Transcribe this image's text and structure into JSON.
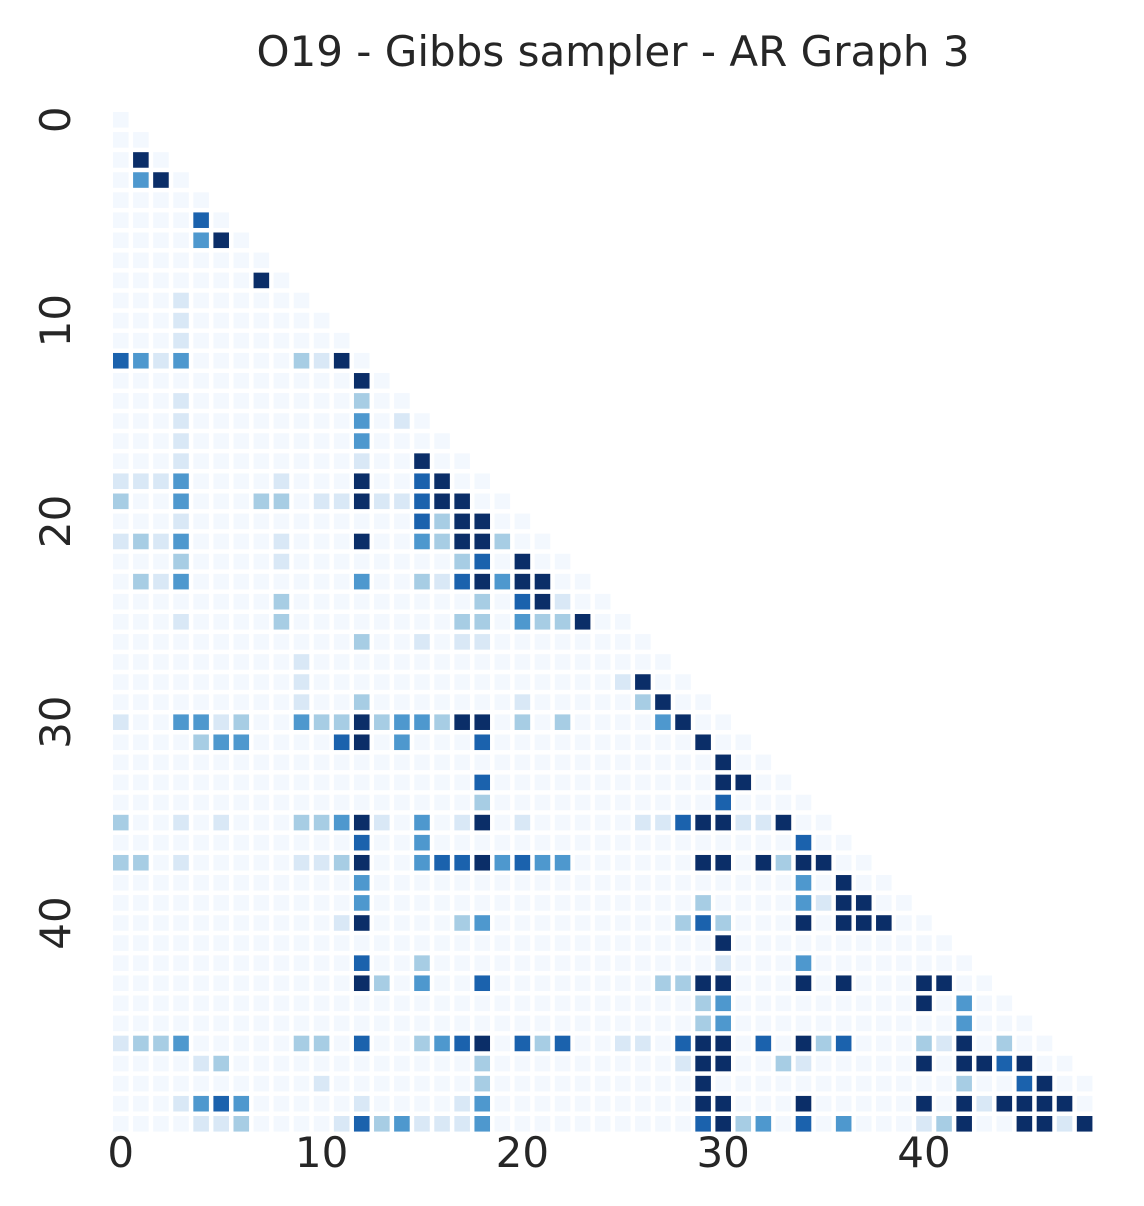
{
  "chart_data": {
    "type": "heatmap",
    "title": "O19 - Gibbs sampler - AR Graph 3",
    "xlabel": "",
    "ylabel": "",
    "n": 49,
    "mask": "lower-triangular (upper triangle blank)",
    "colormap": "Blues",
    "grid": false,
    "colorbar": false,
    "x_ticks": [
      "0",
      "10",
      "20",
      "30",
      "40"
    ],
    "y_ticks": [
      "0",
      "10",
      "20",
      "30",
      "40"
    ],
    "levels_note": "0=very light, 1=light, 2=medium, 3=blue, 4=strong blue, 5=dark navy",
    "nonzero_cells": [
      [
        2,
        1,
        5
      ],
      [
        3,
        1,
        3
      ],
      [
        3,
        2,
        5
      ],
      [
        5,
        4,
        4
      ],
      [
        6,
        4,
        3
      ],
      [
        6,
        5,
        5
      ],
      [
        8,
        7,
        5
      ],
      [
        9,
        3,
        1
      ],
      [
        10,
        3,
        1
      ],
      [
        11,
        3,
        1
      ],
      [
        12,
        3,
        1
      ],
      [
        12,
        0,
        4
      ],
      [
        12,
        1,
        3
      ],
      [
        12,
        2,
        1
      ],
      [
        12,
        3,
        3
      ],
      [
        12,
        9,
        2
      ],
      [
        12,
        10,
        1
      ],
      [
        12,
        11,
        5
      ],
      [
        13,
        12,
        5
      ],
      [
        14,
        3,
        1
      ],
      [
        14,
        12,
        2
      ],
      [
        15,
        3,
        1
      ],
      [
        15,
        12,
        3
      ],
      [
        15,
        14,
        1
      ],
      [
        16,
        3,
        1
      ],
      [
        16,
        12,
        3
      ],
      [
        17,
        3,
        1
      ],
      [
        17,
        12,
        1
      ],
      [
        17,
        15,
        5
      ],
      [
        18,
        0,
        1
      ],
      [
        18,
        1,
        1
      ],
      [
        18,
        2,
        1
      ],
      [
        18,
        3,
        3
      ],
      [
        18,
        8,
        1
      ],
      [
        18,
        12,
        5
      ],
      [
        18,
        15,
        4
      ],
      [
        18,
        16,
        5
      ],
      [
        19,
        0,
        2
      ],
      [
        19,
        3,
        3
      ],
      [
        19,
        7,
        2
      ],
      [
        19,
        8,
        2
      ],
      [
        19,
        10,
        1
      ],
      [
        19,
        11,
        1
      ],
      [
        19,
        12,
        5
      ],
      [
        19,
        13,
        1
      ],
      [
        19,
        14,
        1
      ],
      [
        19,
        15,
        4
      ],
      [
        19,
        16,
        5
      ],
      [
        19,
        17,
        5
      ],
      [
        20,
        3,
        1
      ],
      [
        20,
        15,
        4
      ],
      [
        20,
        16,
        2
      ],
      [
        20,
        17,
        5
      ],
      [
        20,
        18,
        5
      ],
      [
        21,
        0,
        1
      ],
      [
        21,
        1,
        2
      ],
      [
        21,
        2,
        1
      ],
      [
        21,
        3,
        3
      ],
      [
        21,
        8,
        1
      ],
      [
        21,
        12,
        5
      ],
      [
        21,
        15,
        3
      ],
      [
        21,
        16,
        2
      ],
      [
        21,
        17,
        5
      ],
      [
        21,
        18,
        5
      ],
      [
        21,
        19,
        2
      ],
      [
        22,
        3,
        2
      ],
      [
        22,
        8,
        1
      ],
      [
        22,
        17,
        2
      ],
      [
        22,
        18,
        4
      ],
      [
        22,
        20,
        5
      ],
      [
        23,
        1,
        2
      ],
      [
        23,
        2,
        1
      ],
      [
        23,
        3,
        3
      ],
      [
        23,
        12,
        3
      ],
      [
        23,
        15,
        2
      ],
      [
        23,
        16,
        1
      ],
      [
        23,
        17,
        4
      ],
      [
        23,
        18,
        5
      ],
      [
        23,
        19,
        3
      ],
      [
        23,
        20,
        5
      ],
      [
        23,
        21,
        5
      ],
      [
        24,
        8,
        2
      ],
      [
        24,
        18,
        2
      ],
      [
        24,
        20,
        4
      ],
      [
        24,
        21,
        5
      ],
      [
        24,
        22,
        1
      ],
      [
        25,
        3,
        1
      ],
      [
        25,
        8,
        2
      ],
      [
        25,
        17,
        2
      ],
      [
        25,
        18,
        2
      ],
      [
        25,
        20,
        3
      ],
      [
        25,
        21,
        2
      ],
      [
        25,
        22,
        2
      ],
      [
        25,
        23,
        5
      ],
      [
        26,
        12,
        2
      ],
      [
        26,
        15,
        1
      ],
      [
        26,
        17,
        1
      ],
      [
        26,
        18,
        1
      ],
      [
        27,
        9,
        1
      ],
      [
        28,
        9,
        1
      ],
      [
        28,
        25,
        1
      ],
      [
        28,
        26,
        5
      ],
      [
        29,
        9,
        1
      ],
      [
        29,
        12,
        2
      ],
      [
        29,
        20,
        1
      ],
      [
        29,
        26,
        2
      ],
      [
        29,
        27,
        5
      ],
      [
        30,
        0,
        1
      ],
      [
        30,
        3,
        3
      ],
      [
        30,
        4,
        3
      ],
      [
        30,
        5,
        1
      ],
      [
        30,
        6,
        2
      ],
      [
        30,
        9,
        3
      ],
      [
        30,
        10,
        2
      ],
      [
        30,
        11,
        2
      ],
      [
        30,
        12,
        5
      ],
      [
        30,
        13,
        2
      ],
      [
        30,
        14,
        3
      ],
      [
        30,
        15,
        3
      ],
      [
        30,
        16,
        2
      ],
      [
        30,
        17,
        5
      ],
      [
        30,
        18,
        5
      ],
      [
        30,
        20,
        2
      ],
      [
        30,
        22,
        2
      ],
      [
        30,
        27,
        3
      ],
      [
        30,
        28,
        5
      ],
      [
        31,
        4,
        2
      ],
      [
        31,
        5,
        3
      ],
      [
        31,
        6,
        3
      ],
      [
        31,
        11,
        4
      ],
      [
        31,
        12,
        5
      ],
      [
        31,
        14,
        3
      ],
      [
        31,
        18,
        4
      ],
      [
        31,
        29,
        5
      ],
      [
        32,
        30,
        5
      ],
      [
        33,
        18,
        4
      ],
      [
        33,
        30,
        5
      ],
      [
        33,
        31,
        5
      ],
      [
        34,
        18,
        2
      ],
      [
        34,
        30,
        4
      ],
      [
        35,
        0,
        2
      ],
      [
        35,
        3,
        1
      ],
      [
        35,
        5,
        1
      ],
      [
        35,
        9,
        2
      ],
      [
        35,
        10,
        2
      ],
      [
        35,
        11,
        3
      ],
      [
        35,
        12,
        5
      ],
      [
        35,
        13,
        1
      ],
      [
        35,
        15,
        3
      ],
      [
        35,
        17,
        1
      ],
      [
        35,
        18,
        5
      ],
      [
        35,
        20,
        1
      ],
      [
        35,
        26,
        1
      ],
      [
        35,
        27,
        1
      ],
      [
        35,
        28,
        4
      ],
      [
        35,
        29,
        5
      ],
      [
        35,
        30,
        5
      ],
      [
        35,
        31,
        1
      ],
      [
        35,
        32,
        1
      ],
      [
        35,
        33,
        5
      ],
      [
        36,
        12,
        4
      ],
      [
        36,
        15,
        3
      ],
      [
        36,
        34,
        4
      ],
      [
        37,
        0,
        2
      ],
      [
        37,
        1,
        2
      ],
      [
        37,
        3,
        1
      ],
      [
        37,
        9,
        1
      ],
      [
        37,
        10,
        1
      ],
      [
        37,
        11,
        2
      ],
      [
        37,
        12,
        5
      ],
      [
        37,
        15,
        3
      ],
      [
        37,
        16,
        4
      ],
      [
        37,
        17,
        4
      ],
      [
        37,
        18,
        5
      ],
      [
        37,
        19,
        3
      ],
      [
        37,
        20,
        4
      ],
      [
        37,
        21,
        3
      ],
      [
        37,
        22,
        3
      ],
      [
        37,
        29,
        5
      ],
      [
        37,
        30,
        5
      ],
      [
        37,
        32,
        5
      ],
      [
        37,
        33,
        2
      ],
      [
        37,
        34,
        5
      ],
      [
        37,
        35,
        5
      ],
      [
        38,
        12,
        3
      ],
      [
        38,
        34,
        3
      ],
      [
        38,
        36,
        5
      ],
      [
        39,
        12,
        3
      ],
      [
        39,
        29,
        2
      ],
      [
        39,
        34,
        3
      ],
      [
        39,
        35,
        1
      ],
      [
        39,
        36,
        5
      ],
      [
        39,
        37,
        5
      ],
      [
        40,
        11,
        1
      ],
      [
        40,
        12,
        5
      ],
      [
        40,
        17,
        2
      ],
      [
        40,
        18,
        3
      ],
      [
        40,
        28,
        2
      ],
      [
        40,
        29,
        4
      ],
      [
        40,
        30,
        2
      ],
      [
        40,
        34,
        5
      ],
      [
        40,
        36,
        5
      ],
      [
        40,
        37,
        5
      ],
      [
        40,
        38,
        5
      ],
      [
        41,
        30,
        5
      ],
      [
        42,
        12,
        4
      ],
      [
        42,
        15,
        2
      ],
      [
        42,
        30,
        1
      ],
      [
        42,
        34,
        3
      ],
      [
        43,
        12,
        5
      ],
      [
        43,
        13,
        2
      ],
      [
        43,
        15,
        3
      ],
      [
        43,
        18,
        4
      ],
      [
        43,
        27,
        2
      ],
      [
        43,
        28,
        2
      ],
      [
        43,
        29,
        5
      ],
      [
        43,
        30,
        5
      ],
      [
        43,
        34,
        5
      ],
      [
        43,
        36,
        5
      ],
      [
        43,
        40,
        5
      ],
      [
        43,
        41,
        5
      ],
      [
        44,
        29,
        2
      ],
      [
        44,
        30,
        3
      ],
      [
        44,
        40,
        5
      ],
      [
        44,
        42,
        3
      ],
      [
        45,
        29,
        2
      ],
      [
        45,
        30,
        3
      ],
      [
        45,
        42,
        3
      ],
      [
        46,
        0,
        1
      ],
      [
        46,
        1,
        2
      ],
      [
        46,
        2,
        2
      ],
      [
        46,
        3,
        3
      ],
      [
        46,
        9,
        2
      ],
      [
        46,
        10,
        2
      ],
      [
        46,
        12,
        4
      ],
      [
        46,
        15,
        2
      ],
      [
        46,
        16,
        3
      ],
      [
        46,
        17,
        4
      ],
      [
        46,
        18,
        5
      ],
      [
        46,
        20,
        4
      ],
      [
        46,
        21,
        2
      ],
      [
        46,
        22,
        4
      ],
      [
        46,
        25,
        1
      ],
      [
        46,
        26,
        1
      ],
      [
        46,
        28,
        4
      ],
      [
        46,
        29,
        5
      ],
      [
        46,
        30,
        5
      ],
      [
        46,
        32,
        4
      ],
      [
        46,
        34,
        5
      ],
      [
        46,
        35,
        2
      ],
      [
        46,
        36,
        4
      ],
      [
        46,
        40,
        2
      ],
      [
        46,
        41,
        1
      ],
      [
        46,
        42,
        5
      ],
      [
        46,
        44,
        2
      ],
      [
        47,
        4,
        1
      ],
      [
        47,
        5,
        2
      ],
      [
        47,
        18,
        2
      ],
      [
        47,
        28,
        1
      ],
      [
        47,
        29,
        5
      ],
      [
        47,
        30,
        5
      ],
      [
        47,
        33,
        2
      ],
      [
        47,
        34,
        1
      ],
      [
        47,
        40,
        5
      ],
      [
        47,
        42,
        5
      ],
      [
        47,
        43,
        5
      ],
      [
        47,
        44,
        4
      ],
      [
        47,
        45,
        5
      ],
      [
        48,
        10,
        1
      ],
      [
        48,
        18,
        2
      ],
      [
        48,
        29,
        5
      ],
      [
        48,
        42,
        2
      ],
      [
        48,
        45,
        4
      ],
      [
        48,
        46,
        5
      ]
    ],
    "extra_rows": [
      [
        49,
        3,
        1
      ],
      [
        49,
        4,
        3
      ],
      [
        49,
        5,
        4
      ],
      [
        49,
        6,
        3
      ],
      [
        49,
        12,
        1
      ],
      [
        49,
        17,
        1
      ],
      [
        49,
        18,
        3
      ],
      [
        49,
        29,
        5
      ],
      [
        49,
        30,
        5
      ],
      [
        49,
        34,
        5
      ],
      [
        49,
        40,
        5
      ],
      [
        49,
        42,
        5
      ],
      [
        49,
        43,
        1
      ],
      [
        49,
        44,
        5
      ],
      [
        49,
        45,
        5
      ],
      [
        49,
        46,
        5
      ],
      [
        49,
        47,
        5
      ],
      [
        50,
        4,
        1
      ],
      [
        50,
        5,
        1
      ],
      [
        50,
        6,
        2
      ],
      [
        50,
        11,
        1
      ],
      [
        50,
        12,
        4
      ],
      [
        50,
        13,
        2
      ],
      [
        50,
        14,
        3
      ],
      [
        50,
        15,
        1
      ],
      [
        50,
        16,
        1
      ],
      [
        50,
        17,
        1
      ],
      [
        50,
        18,
        3
      ],
      [
        50,
        29,
        4
      ],
      [
        50,
        30,
        5
      ],
      [
        50,
        31,
        2
      ],
      [
        50,
        32,
        3
      ],
      [
        50,
        34,
        4
      ],
      [
        50,
        36,
        3
      ],
      [
        50,
        40,
        1
      ],
      [
        50,
        41,
        2
      ],
      [
        50,
        42,
        5
      ],
      [
        50,
        45,
        5
      ],
      [
        50,
        46,
        5
      ],
      [
        50,
        47,
        1
      ],
      [
        50,
        48,
        5
      ]
    ]
  },
  "colors": {
    "levels": [
      "#f3f8fe",
      "#d9e8f6",
      "#a7cde4",
      "#4e98ce",
      "#1b62ad",
      "#0b2e68"
    ],
    "text": "#262626",
    "background": "#ffffff"
  }
}
